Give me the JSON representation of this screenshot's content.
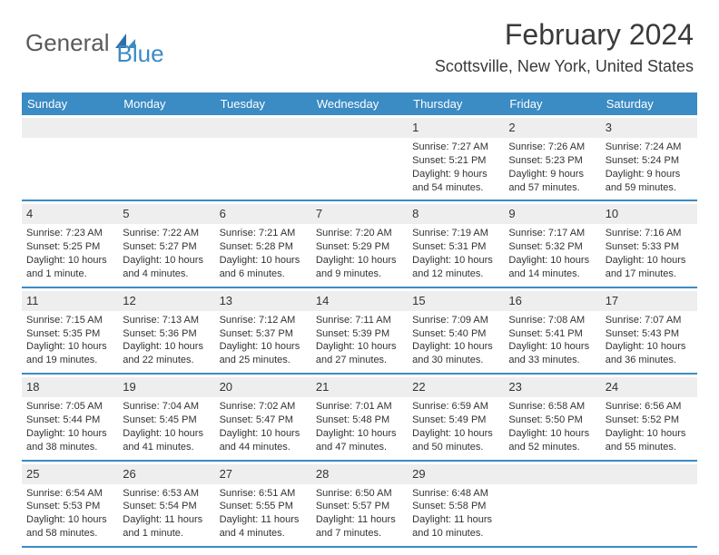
{
  "brand": {
    "part1": "General",
    "part2": "Blue"
  },
  "title": "February 2024",
  "location": "Scottsville, New York, United States",
  "colors": {
    "accent": "#3b8bc4",
    "header_gray": "#eeeeee",
    "text": "#323232",
    "logo_gray": "#5a5a5a",
    "background": "#ffffff"
  },
  "weekdays": [
    "Sunday",
    "Monday",
    "Tuesday",
    "Wednesday",
    "Thursday",
    "Friday",
    "Saturday"
  ],
  "weeks": [
    [
      null,
      null,
      null,
      null,
      {
        "n": "1",
        "sr": "Sunrise: 7:27 AM",
        "ss": "Sunset: 5:21 PM",
        "d1": "Daylight: 9 hours",
        "d2": "and 54 minutes."
      },
      {
        "n": "2",
        "sr": "Sunrise: 7:26 AM",
        "ss": "Sunset: 5:23 PM",
        "d1": "Daylight: 9 hours",
        "d2": "and 57 minutes."
      },
      {
        "n": "3",
        "sr": "Sunrise: 7:24 AM",
        "ss": "Sunset: 5:24 PM",
        "d1": "Daylight: 9 hours",
        "d2": "and 59 minutes."
      }
    ],
    [
      {
        "n": "4",
        "sr": "Sunrise: 7:23 AM",
        "ss": "Sunset: 5:25 PM",
        "d1": "Daylight: 10 hours",
        "d2": "and 1 minute."
      },
      {
        "n": "5",
        "sr": "Sunrise: 7:22 AM",
        "ss": "Sunset: 5:27 PM",
        "d1": "Daylight: 10 hours",
        "d2": "and 4 minutes."
      },
      {
        "n": "6",
        "sr": "Sunrise: 7:21 AM",
        "ss": "Sunset: 5:28 PM",
        "d1": "Daylight: 10 hours",
        "d2": "and 6 minutes."
      },
      {
        "n": "7",
        "sr": "Sunrise: 7:20 AM",
        "ss": "Sunset: 5:29 PM",
        "d1": "Daylight: 10 hours",
        "d2": "and 9 minutes."
      },
      {
        "n": "8",
        "sr": "Sunrise: 7:19 AM",
        "ss": "Sunset: 5:31 PM",
        "d1": "Daylight: 10 hours",
        "d2": "and 12 minutes."
      },
      {
        "n": "9",
        "sr": "Sunrise: 7:17 AM",
        "ss": "Sunset: 5:32 PM",
        "d1": "Daylight: 10 hours",
        "d2": "and 14 minutes."
      },
      {
        "n": "10",
        "sr": "Sunrise: 7:16 AM",
        "ss": "Sunset: 5:33 PM",
        "d1": "Daylight: 10 hours",
        "d2": "and 17 minutes."
      }
    ],
    [
      {
        "n": "11",
        "sr": "Sunrise: 7:15 AM",
        "ss": "Sunset: 5:35 PM",
        "d1": "Daylight: 10 hours",
        "d2": "and 19 minutes."
      },
      {
        "n": "12",
        "sr": "Sunrise: 7:13 AM",
        "ss": "Sunset: 5:36 PM",
        "d1": "Daylight: 10 hours",
        "d2": "and 22 minutes."
      },
      {
        "n": "13",
        "sr": "Sunrise: 7:12 AM",
        "ss": "Sunset: 5:37 PM",
        "d1": "Daylight: 10 hours",
        "d2": "and 25 minutes."
      },
      {
        "n": "14",
        "sr": "Sunrise: 7:11 AM",
        "ss": "Sunset: 5:39 PM",
        "d1": "Daylight: 10 hours",
        "d2": "and 27 minutes."
      },
      {
        "n": "15",
        "sr": "Sunrise: 7:09 AM",
        "ss": "Sunset: 5:40 PM",
        "d1": "Daylight: 10 hours",
        "d2": "and 30 minutes."
      },
      {
        "n": "16",
        "sr": "Sunrise: 7:08 AM",
        "ss": "Sunset: 5:41 PM",
        "d1": "Daylight: 10 hours",
        "d2": "and 33 minutes."
      },
      {
        "n": "17",
        "sr": "Sunrise: 7:07 AM",
        "ss": "Sunset: 5:43 PM",
        "d1": "Daylight: 10 hours",
        "d2": "and 36 minutes."
      }
    ],
    [
      {
        "n": "18",
        "sr": "Sunrise: 7:05 AM",
        "ss": "Sunset: 5:44 PM",
        "d1": "Daylight: 10 hours",
        "d2": "and 38 minutes."
      },
      {
        "n": "19",
        "sr": "Sunrise: 7:04 AM",
        "ss": "Sunset: 5:45 PM",
        "d1": "Daylight: 10 hours",
        "d2": "and 41 minutes."
      },
      {
        "n": "20",
        "sr": "Sunrise: 7:02 AM",
        "ss": "Sunset: 5:47 PM",
        "d1": "Daylight: 10 hours",
        "d2": "and 44 minutes."
      },
      {
        "n": "21",
        "sr": "Sunrise: 7:01 AM",
        "ss": "Sunset: 5:48 PM",
        "d1": "Daylight: 10 hours",
        "d2": "and 47 minutes."
      },
      {
        "n": "22",
        "sr": "Sunrise: 6:59 AM",
        "ss": "Sunset: 5:49 PM",
        "d1": "Daylight: 10 hours",
        "d2": "and 50 minutes."
      },
      {
        "n": "23",
        "sr": "Sunrise: 6:58 AM",
        "ss": "Sunset: 5:50 PM",
        "d1": "Daylight: 10 hours",
        "d2": "and 52 minutes."
      },
      {
        "n": "24",
        "sr": "Sunrise: 6:56 AM",
        "ss": "Sunset: 5:52 PM",
        "d1": "Daylight: 10 hours",
        "d2": "and 55 minutes."
      }
    ],
    [
      {
        "n": "25",
        "sr": "Sunrise: 6:54 AM",
        "ss": "Sunset: 5:53 PM",
        "d1": "Daylight: 10 hours",
        "d2": "and 58 minutes."
      },
      {
        "n": "26",
        "sr": "Sunrise: 6:53 AM",
        "ss": "Sunset: 5:54 PM",
        "d1": "Daylight: 11 hours",
        "d2": "and 1 minute."
      },
      {
        "n": "27",
        "sr": "Sunrise: 6:51 AM",
        "ss": "Sunset: 5:55 PM",
        "d1": "Daylight: 11 hours",
        "d2": "and 4 minutes."
      },
      {
        "n": "28",
        "sr": "Sunrise: 6:50 AM",
        "ss": "Sunset: 5:57 PM",
        "d1": "Daylight: 11 hours",
        "d2": "and 7 minutes."
      },
      {
        "n": "29",
        "sr": "Sunrise: 6:48 AM",
        "ss": "Sunset: 5:58 PM",
        "d1": "Daylight: 11 hours",
        "d2": "and 10 minutes."
      },
      null,
      null
    ]
  ]
}
